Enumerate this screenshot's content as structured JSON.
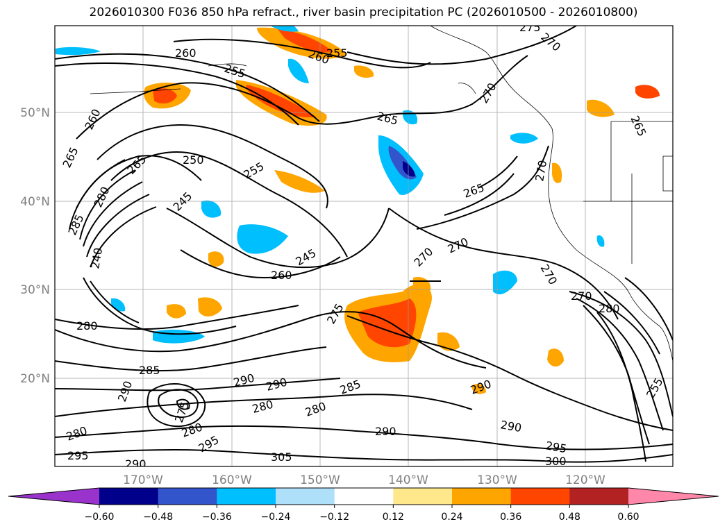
{
  "title": "2026010300 F036 850 hPa refract., river basin precipitation PC (2026010500 - 2026010800)",
  "map": {
    "lat_labels": [
      "50°N",
      "40°N",
      "30°N",
      "20°N"
    ],
    "lon_labels": [
      "170°W",
      "160°W",
      "150°W",
      "140°W",
      "130°W",
      "120°W"
    ],
    "gridlines": true
  },
  "contour_labels": [
    {
      "text": "260"
    },
    {
      "text": "255"
    },
    {
      "text": "260"
    },
    {
      "text": "255"
    },
    {
      "text": "275"
    },
    {
      "text": "270"
    },
    {
      "text": "270"
    },
    {
      "text": "265"
    },
    {
      "text": "265"
    },
    {
      "text": "260"
    },
    {
      "text": "265"
    },
    {
      "text": "250"
    },
    {
      "text": "255"
    },
    {
      "text": "265"
    },
    {
      "text": "280"
    },
    {
      "text": "245"
    },
    {
      "text": "265"
    },
    {
      "text": "270"
    },
    {
      "text": "285"
    },
    {
      "text": "240"
    },
    {
      "text": "245"
    },
    {
      "text": "270"
    },
    {
      "text": "270"
    },
    {
      "text": "260"
    },
    {
      "text": "270"
    },
    {
      "text": "270"
    },
    {
      "text": "280"
    },
    {
      "text": "275"
    },
    {
      "text": "280"
    },
    {
      "text": "285"
    },
    {
      "text": "290"
    },
    {
      "text": "290"
    },
    {
      "text": "290"
    },
    {
      "text": "285"
    },
    {
      "text": "280"
    },
    {
      "text": "280"
    },
    {
      "text": "290"
    },
    {
      "text": "290"
    },
    {
      "text": "275"
    },
    {
      "text": "280"
    },
    {
      "text": "295"
    },
    {
      "text": "280"
    },
    {
      "text": "290"
    },
    {
      "text": "295"
    },
    {
      "text": "295"
    },
    {
      "text": "305"
    },
    {
      "text": "300"
    },
    {
      "text": "290"
    },
    {
      "text": "255"
    }
  ],
  "colorbar": {
    "ticks": [
      "−0.60",
      "−0.48",
      "−0.36",
      "−0.24",
      "−0.12",
      "0.12",
      "0.24",
      "0.36",
      "0.48",
      "0.60"
    ],
    "colors": [
      "#9933cc",
      "#00008b",
      "#3355cc",
      "#00bfff",
      "#aee0fa",
      "#ffffff",
      "#ffe88c",
      "#ffa500",
      "#ff4500",
      "#b22222",
      "#ff88aa"
    ]
  }
}
